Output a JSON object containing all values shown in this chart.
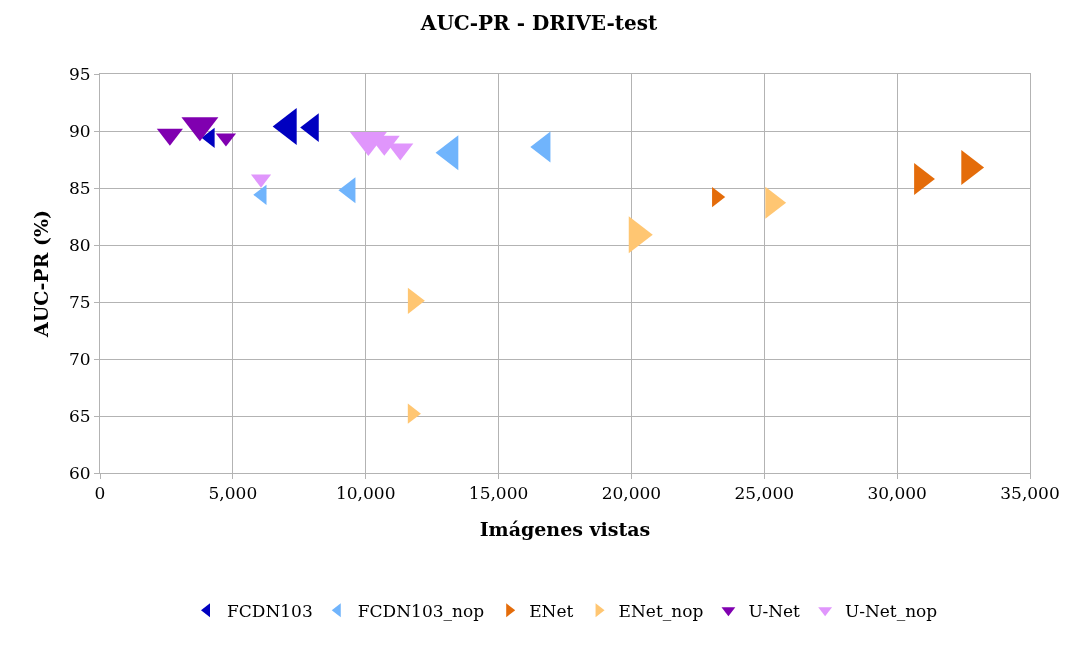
{
  "chart_data": {
    "type": "bubble",
    "title": "AUC-PR - DRIVE-test",
    "xlabel": "Imágenes vistas",
    "ylabel": "AUC-PR (%)",
    "xlim": [
      0,
      35000
    ],
    "xticks": [
      {
        "value": 0,
        "label": "0"
      },
      {
        "value": 5000,
        "label": "5,000"
      },
      {
        "value": 10000,
        "label": "10,000"
      },
      {
        "value": 15000,
        "label": "15,000"
      },
      {
        "value": 20000,
        "label": "20,000"
      },
      {
        "value": 25000,
        "label": "25,000"
      },
      {
        "value": 30000,
        "label": "30,000"
      },
      {
        "value": 35000,
        "label": "35,000"
      }
    ],
    "ylim": [
      60,
      95
    ],
    "yticks": [
      60,
      65,
      70,
      75,
      80,
      85,
      90,
      95
    ],
    "grid": true,
    "legend": "bottom",
    "marker": "triangle",
    "series": [
      {
        "name": "FCDN103",
        "color": "#0000c0",
        "x": [
          7100,
          8000,
          4150
        ],
        "values": [
          90.4,
          90.3,
          89.4
        ],
        "sizes": [
          1,
          0.6,
          0.3
        ]
      },
      {
        "name": "FCDN103_nop",
        "color": "#70b4fc",
        "x": [
          13200,
          16700,
          9400,
          6100
        ],
        "values": [
          88.1,
          88.6,
          84.8,
          84.4
        ],
        "sizes": [
          0.9,
          0.7,
          0.5,
          0.3
        ]
      },
      {
        "name": "ENet",
        "color": "#e46c0a",
        "x": [
          30900,
          32700,
          23200
        ],
        "values": [
          85.8,
          86.8,
          84.2
        ],
        "sizes": [
          0.75,
          0.9,
          0.3
        ]
      },
      {
        "name": "ENet_nop",
        "color": "#ffc672",
        "x": [
          20200,
          25300,
          11800,
          11750
        ],
        "values": [
          80.9,
          83.7,
          75.1,
          65.2
        ],
        "sizes": [
          1,
          0.75,
          0.5,
          0.3
        ]
      },
      {
        "name": "U-Net",
        "color": "#8000b0",
        "x": [
          3760,
          2630,
          4740
        ],
        "values": [
          90.5,
          89.7,
          89.4
        ],
        "sizes": [
          1,
          0.5,
          0.3
        ]
      },
      {
        "name": "U-Net_nop",
        "color": "#e096fc",
        "x": [
          10100,
          10700,
          11300,
          6060
        ],
        "values": [
          89.2,
          89.0,
          88.4,
          85.8
        ],
        "sizes": [
          1,
          0.7,
          0.5,
          0.3
        ]
      }
    ]
  }
}
